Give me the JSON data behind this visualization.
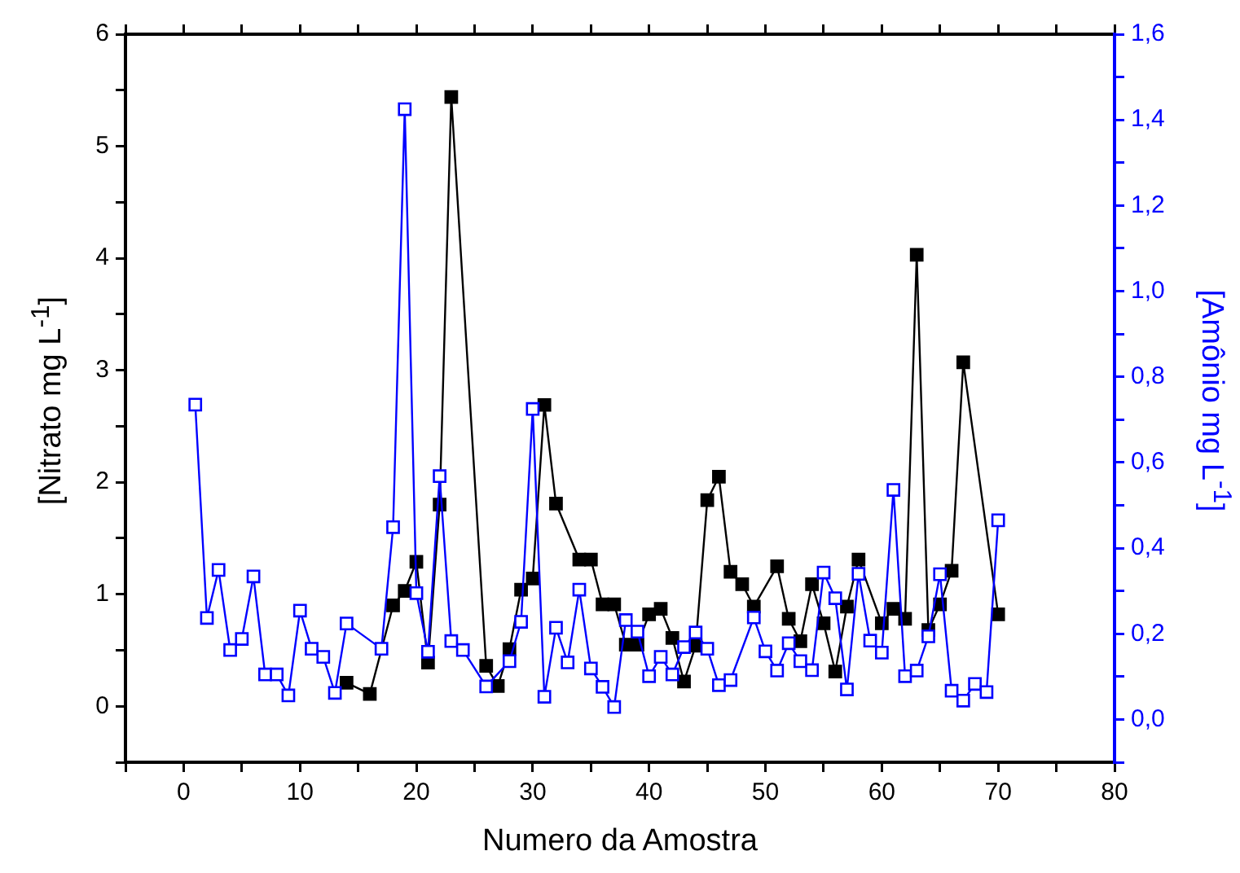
{
  "chart_data": {
    "type": "line",
    "xlabel": "Numero da Amostra",
    "ylabel": "[Nitrato mg L$^{-1}$]",
    "y2label": "[Amônio mg L$^{-1}$]",
    "xlim": [
      -5,
      80
    ],
    "xticks": [
      {
        "value": -5,
        "label": null
      },
      0,
      {
        "value": 5,
        "label": null
      },
      10,
      {
        "value": 15,
        "label": null
      },
      20,
      {
        "value": 25,
        "label": null
      },
      30,
      {
        "value": 35,
        "label": null
      },
      40,
      {
        "value": 45,
        "label": null
      },
      50,
      {
        "value": 55,
        "label": null
      },
      60,
      {
        "value": 65,
        "label": null
      },
      70,
      {
        "value": 75,
        "label": null
      },
      80
    ],
    "ylim": [
      -0.5,
      6
    ],
    "yticks": [
      {
        "value": -0.5,
        "label": null
      },
      0,
      {
        "value": 0.5,
        "label": null
      },
      1,
      {
        "value": 1.5,
        "label": null
      },
      2,
      {
        "value": 2.5,
        "label": null
      },
      3,
      {
        "value": 3.5,
        "label": null
      },
      4,
      {
        "value": 4.5,
        "label": null
      },
      5,
      {
        "value": 5.5,
        "label": null
      },
      6
    ],
    "y2lim": [
      -0.1,
      1.6
    ],
    "y2ticks": [
      {
        "value": -0.1,
        "label": null
      },
      {
        "value": 0,
        "label": "0,0"
      },
      {
        "value": 0.1,
        "label": null
      },
      {
        "value": 0.2,
        "label": "0,2"
      },
      {
        "value": 0.3,
        "label": null
      },
      {
        "value": 0.4,
        "label": "0,4"
      },
      {
        "value": 0.5,
        "label": null
      },
      {
        "value": 0.6,
        "label": "0,6"
      },
      {
        "value": 0.7,
        "label": null
      },
      {
        "value": 0.8,
        "label": "0,8"
      },
      {
        "value": 0.9,
        "label": null
      },
      {
        "value": 1.0,
        "label": "1,0"
      },
      {
        "value": 1.1,
        "label": null
      },
      {
        "value": 1.2,
        "label": "1,2"
      },
      {
        "value": 1.3,
        "label": null
      },
      {
        "value": 1.4,
        "label": "1,4"
      },
      {
        "value": 1.5,
        "label": null
      },
      {
        "value": 1.6,
        "label": "1,6"
      }
    ],
    "marker": "square",
    "line_style": "solid",
    "grid": false,
    "legend": false,
    "series": [
      {
        "color": "#000000",
        "x": [
          14,
          16,
          18,
          19,
          20,
          21,
          22,
          23,
          26,
          27,
          28,
          29,
          30,
          31,
          32,
          34,
          35,
          36,
          37,
          38,
          39,
          40,
          41,
          42,
          43,
          44,
          45,
          46,
          47,
          48,
          49,
          51,
          52,
          53,
          54,
          55,
          56,
          57,
          58,
          60,
          61,
          62,
          63,
          64,
          65,
          66,
          67,
          70
        ],
        "values": [
          0.21,
          0.11,
          0.9,
          1.03,
          1.29,
          0.39,
          1.8,
          5.44,
          0.36,
          0.18,
          0.51,
          1.04,
          1.14,
          2.69,
          1.81,
          1.31,
          1.31,
          0.91,
          0.91,
          0.55,
          0.55,
          0.82,
          0.87,
          0.61,
          0.22,
          0.54,
          1.84,
          2.05,
          1.2,
          1.09,
          0.89,
          1.25,
          0.78,
          0.58,
          1.09,
          0.74,
          0.31,
          0.89,
          1.31,
          0.74,
          0.87,
          0.78,
          4.03,
          0.68,
          0.91,
          1.21,
          3.07,
          0.82
        ]
      },
      {
        "color": "#0000ff",
        "axis": "y2",
        "x": [
          1,
          2,
          3,
          4,
          5,
          6,
          7,
          8,
          9,
          10,
          11,
          12,
          13,
          14,
          17,
          18,
          19,
          20,
          21,
          22,
          23,
          24,
          26,
          28,
          29,
          30,
          31,
          32,
          33,
          34,
          35,
          36,
          37,
          38,
          39,
          40,
          41,
          42,
          43,
          44,
          45,
          46,
          47,
          49,
          50,
          51,
          52,
          53,
          54,
          55,
          56,
          57,
          58,
          59,
          60,
          61,
          62,
          63,
          64,
          65,
          66,
          67,
          68,
          69,
          70
        ],
        "values": [
          0.735,
          0.237,
          0.349,
          0.162,
          0.188,
          0.334,
          0.105,
          0.105,
          0.056,
          0.254,
          0.165,
          0.146,
          0.062,
          0.224,
          0.165,
          0.449,
          1.425,
          0.295,
          0.158,
          0.568,
          0.183,
          0.162,
          0.077,
          0.136,
          0.228,
          0.725,
          0.053,
          0.214,
          0.133,
          0.303,
          0.119,
          0.076,
          0.029,
          0.232,
          0.205,
          0.101,
          0.146,
          0.105,
          0.169,
          0.203,
          0.165,
          0.08,
          0.092,
          0.238,
          0.159,
          0.114,
          0.178,
          0.136,
          0.115,
          0.343,
          0.283,
          0.07,
          0.34,
          0.184,
          0.156,
          0.536,
          0.101,
          0.114,
          0.194,
          0.339,
          0.067,
          0.044,
          0.083,
          0.064,
          0.465
        ]
      }
    ]
  }
}
